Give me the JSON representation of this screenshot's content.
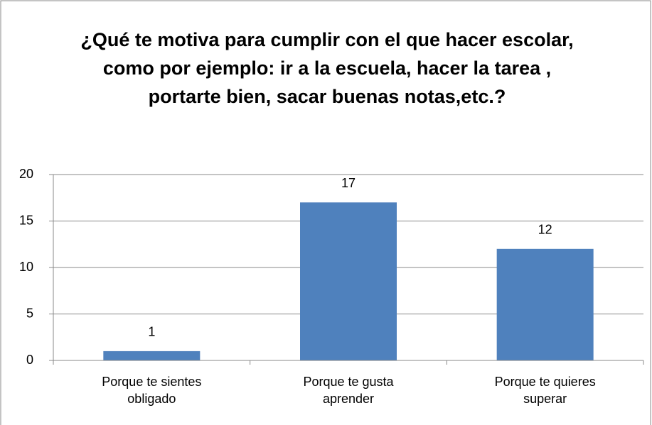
{
  "chart_data": {
    "type": "bar",
    "title": "¿Qué te motiva para cumplir con el que hacer escolar, como por ejemplo: ir a la escuela, hacer la tarea , portarte bien, sacar buenas notas,etc.?",
    "categories": [
      "Porque te sientes obligado",
      "Porque te gusta aprender",
      "Porque te quieres superar"
    ],
    "values": [
      1,
      17,
      12
    ],
    "color": "#4f81bd",
    "ylim": [
      0,
      20
    ],
    "yticks": [
      0,
      5,
      10,
      15,
      20
    ],
    "grid": true
  }
}
